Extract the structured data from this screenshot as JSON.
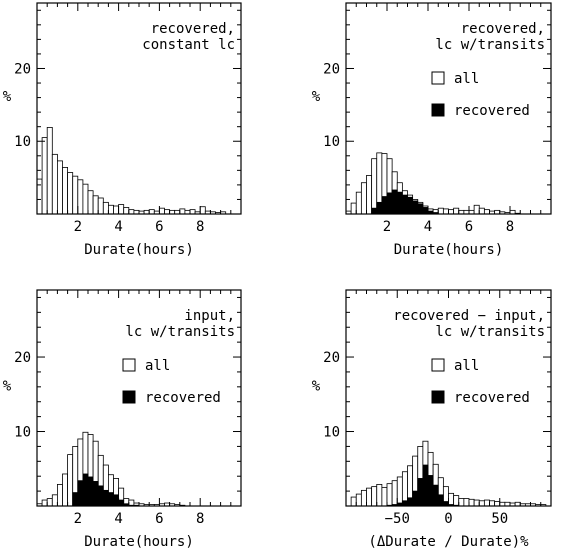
{
  "chart_data": [
    {
      "type": "bar",
      "annotation": [
        "recovered,",
        "constant lc"
      ],
      "ylabel": "%",
      "xlabel": "Durate(hours)",
      "xlim": [
        0,
        10
      ],
      "ylim": [
        0,
        29
      ],
      "xticks": [
        2,
        4,
        6,
        8
      ],
      "yticks": [
        10,
        20
      ],
      "bin_width": 0.25,
      "legend": null,
      "series": [
        {
          "name": "",
          "fill": "#ffffff",
          "x": [
            0.125,
            0.375,
            0.625,
            0.875,
            1.125,
            1.375,
            1.625,
            1.875,
            2.125,
            2.375,
            2.625,
            2.875,
            3.125,
            3.375,
            3.625,
            3.875,
            4.125,
            4.375,
            4.625,
            4.875,
            5.125,
            5.375,
            5.625,
            5.875,
            6.125,
            6.375,
            6.625,
            6.875,
            7.125,
            7.375,
            7.625,
            7.875,
            8.125,
            8.375,
            8.625,
            8.875,
            9.125
          ],
          "values": [
            4.8,
            10.5,
            11.9,
            8.2,
            7.3,
            6.4,
            5.7,
            5.2,
            4.7,
            4.1,
            3.2,
            2.5,
            2.2,
            1.6,
            1.2,
            1.1,
            1.3,
            0.9,
            0.6,
            0.5,
            0.4,
            0.5,
            0.6,
            0.4,
            0.8,
            0.6,
            0.5,
            0.5,
            0.7,
            0.5,
            0.6,
            0.3,
            1.0,
            0.4,
            0.3,
            0.2,
            0.3
          ]
        }
      ]
    },
    {
      "type": "bar",
      "annotation": [
        "recovered,",
        "lc w/transits"
      ],
      "ylabel": "%",
      "xlabel": "Durate(hours)",
      "xlim": [
        0,
        10
      ],
      "ylim": [
        0,
        29
      ],
      "xticks": [
        2,
        4,
        6,
        8
      ],
      "yticks": [
        10,
        20
      ],
      "bin_width": 0.25,
      "legend": [
        {
          "label": "all",
          "fill": "#ffffff"
        },
        {
          "label": "recovered",
          "fill": "#000000"
        }
      ],
      "series": [
        {
          "name": "all",
          "fill": "#ffffff",
          "x": [
            0.125,
            0.375,
            0.625,
            0.875,
            1.125,
            1.375,
            1.625,
            1.875,
            2.125,
            2.375,
            2.625,
            2.875,
            3.125,
            3.375,
            3.625,
            3.875,
            4.125,
            4.375,
            4.625,
            4.875,
            5.125,
            5.375,
            5.625,
            5.875,
            6.125,
            6.375,
            6.625,
            6.875,
            7.125,
            7.375,
            7.625,
            7.875,
            8.125,
            8.375
          ],
          "values": [
            0.4,
            1.5,
            3.0,
            4.3,
            5.3,
            7.6,
            8.4,
            8.3,
            7.6,
            5.8,
            4.3,
            3.2,
            2.6,
            2.0,
            1.6,
            1.1,
            0.7,
            0.6,
            0.8,
            0.7,
            0.6,
            0.8,
            0.5,
            0.5,
            0.5,
            1.2,
            0.8,
            0.6,
            0.4,
            0.5,
            0.3,
            0.2,
            0.5,
            0.1
          ]
        },
        {
          "name": "recovered",
          "fill": "#000000",
          "x": [
            0.125,
            0.375,
            0.625,
            0.875,
            1.125,
            1.375,
            1.625,
            1.875,
            2.125,
            2.375,
            2.625,
            2.875,
            3.125,
            3.375,
            3.625,
            3.875,
            4.125,
            4.375
          ],
          "values": [
            0,
            0,
            0,
            0,
            0,
            0.8,
            1.6,
            2.4,
            2.9,
            3.3,
            3.0,
            2.6,
            2.3,
            1.8,
            1.4,
            0.9,
            0.4,
            0.2
          ]
        }
      ]
    },
    {
      "type": "bar",
      "annotation": [
        "input,",
        "lc w/transits"
      ],
      "ylabel": "%",
      "xlabel": "Durate(hours)",
      "xlim": [
        0,
        10
      ],
      "ylim": [
        0,
        29
      ],
      "xticks": [
        2,
        4,
        6,
        8
      ],
      "yticks": [
        10,
        20
      ],
      "bin_width": 0.25,
      "legend": [
        {
          "label": "all",
          "fill": "#ffffff"
        },
        {
          "label": "recovered",
          "fill": "#000000"
        }
      ],
      "series": [
        {
          "name": "all",
          "fill": "#ffffff",
          "x": [
            0.125,
            0.375,
            0.625,
            0.875,
            1.125,
            1.375,
            1.625,
            1.875,
            2.125,
            2.375,
            2.625,
            2.875,
            3.125,
            3.375,
            3.625,
            3.875,
            4.125,
            4.375,
            4.625,
            4.875,
            5.125,
            5.375,
            5.625,
            5.875,
            6.125,
            6.375,
            6.625,
            6.875,
            7.125
          ],
          "values": [
            0.3,
            0.8,
            1.0,
            1.5,
            2.9,
            4.3,
            6.9,
            8.0,
            9.0,
            9.9,
            9.6,
            8.7,
            6.8,
            5.5,
            4.2,
            3.7,
            2.4,
            1.0,
            0.8,
            0.4,
            0.3,
            0.2,
            0.2,
            0.2,
            0.3,
            0.4,
            0.3,
            0.2,
            0.1
          ]
        },
        {
          "name": "recovered",
          "fill": "#000000",
          "x": [
            0.125,
            0.375,
            0.625,
            0.875,
            1.125,
            1.375,
            1.625,
            1.875,
            2.125,
            2.375,
            2.625,
            2.875,
            3.125,
            3.375,
            3.625,
            3.875,
            4.125,
            4.375,
            4.625,
            4.875
          ],
          "values": [
            0,
            0,
            0,
            0,
            0,
            0,
            0,
            1.8,
            3.4,
            4.3,
            3.9,
            3.3,
            2.7,
            2.1,
            1.8,
            1.5,
            0.8,
            0.3,
            0.1,
            0.1
          ]
        }
      ]
    },
    {
      "type": "bar",
      "annotation": [
        "recovered − input,",
        "lc w/transits"
      ],
      "ylabel": "%",
      "xlabel": "(ΔDurate / Durate)%",
      "xlim": [
        -100,
        100
      ],
      "ylim": [
        0,
        29
      ],
      "xticks": [
        -50,
        0,
        50
      ],
      "yticks": [
        10,
        20
      ],
      "bin_width": 5,
      "legend": [
        {
          "label": "all",
          "fill": "#ffffff"
        },
        {
          "label": "recovered",
          "fill": "#000000"
        }
      ],
      "series": [
        {
          "name": "all",
          "fill": "#ffffff",
          "x": [
            -92.5,
            -87.5,
            -82.5,
            -77.5,
            -72.5,
            -67.5,
            -62.5,
            -57.5,
            -52.5,
            -47.5,
            -42.5,
            -37.5,
            -32.5,
            -27.5,
            -22.5,
            -17.5,
            -12.5,
            -7.5,
            -2.5,
            2.5,
            7.5,
            12.5,
            17.5,
            22.5,
            27.5,
            32.5,
            37.5,
            42.5,
            47.5,
            52.5,
            57.5,
            62.5,
            67.5,
            72.5,
            77.5,
            82.5,
            87.5,
            92.5
          ],
          "values": [
            1.2,
            1.6,
            2.1,
            2.4,
            2.6,
            2.9,
            2.5,
            3.0,
            3.4,
            3.9,
            4.6,
            5.4,
            6.7,
            8.0,
            8.7,
            7.2,
            5.6,
            3.8,
            2.6,
            1.7,
            1.4,
            1.0,
            1.0,
            0.9,
            0.8,
            0.7,
            0.8,
            0.7,
            0.6,
            0.5,
            0.5,
            0.4,
            0.5,
            0.3,
            0.3,
            0.3,
            0.2,
            0.2
          ]
        },
        {
          "name": "recovered",
          "fill": "#000000",
          "x": [
            -57.5,
            -52.5,
            -47.5,
            -42.5,
            -37.5,
            -32.5,
            -27.5,
            -22.5,
            -17.5,
            -12.5,
            -7.5,
            -2.5,
            2.5,
            7.5
          ],
          "values": [
            0.1,
            0.2,
            0.4,
            0.7,
            1.1,
            2.0,
            3.7,
            5.5,
            4.1,
            2.8,
            1.5,
            0.6,
            0.2,
            0.1
          ]
        }
      ]
    }
  ]
}
